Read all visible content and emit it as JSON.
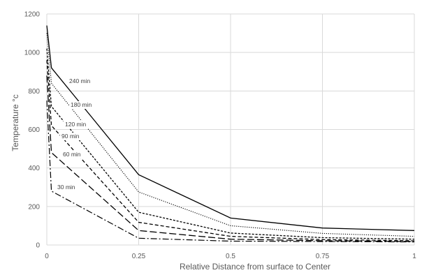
{
  "chart_data": {
    "type": "line",
    "xlabel": "Relative Distance from surface to Center",
    "ylabel": "Temperature °c",
    "xlim": [
      0,
      1
    ],
    "ylim": [
      0,
      1200
    ],
    "x_ticks": [
      {
        "value": 0,
        "label": "0"
      },
      {
        "value": 0.25,
        "label": "0.25"
      },
      {
        "value": 0.5,
        "label": "0.5"
      },
      {
        "value": 0.75,
        "label": "0.75"
      },
      {
        "value": 1,
        "label": "1"
      }
    ],
    "y_ticks": [
      {
        "value": 0,
        "label": "0"
      },
      {
        "value": 200,
        "label": "200"
      },
      {
        "value": 400,
        "label": "400"
      },
      {
        "value": 600,
        "label": "600"
      },
      {
        "value": 800,
        "label": "800"
      },
      {
        "value": 1000,
        "label": "1000"
      },
      {
        "value": 1200,
        "label": "1200"
      }
    ],
    "grid": true,
    "legend": "inline labels",
    "series": [
      {
        "name": "240 min",
        "dash": "solid",
        "x": [
          0,
          0.0125,
          0.25,
          0.5,
          0.75,
          1
        ],
        "y": [
          1140,
          920,
          365,
          140,
          88,
          75
        ]
      },
      {
        "name": "180 min",
        "dash": "dotted",
        "x": [
          0,
          0.0125,
          0.25,
          0.5,
          0.75,
          1
        ],
        "y": [
          1100,
          840,
          275,
          100,
          60,
          45
        ]
      },
      {
        "name": "120 min",
        "dash": "short-dash",
        "x": [
          0,
          0.0125,
          0.25,
          0.5,
          0.75,
          1
        ],
        "y": [
          1020,
          720,
          170,
          62,
          38,
          30
        ]
      },
      {
        "name": "90 min",
        "dash": "dash",
        "x": [
          0,
          0.0125,
          0.25,
          0.5,
          0.75,
          1
        ],
        "y": [
          960,
          620,
          118,
          45,
          28,
          22
        ]
      },
      {
        "name": "60 min",
        "dash": "long-dash",
        "x": [
          0,
          0.0125,
          0.25,
          0.5,
          0.75,
          1
        ],
        "y": [
          880,
          480,
          75,
          30,
          22,
          18
        ]
      },
      {
        "name": "30 min",
        "dash": "dash-dot",
        "x": [
          0,
          0.0125,
          0.25,
          0.5,
          0.75,
          1
        ],
        "y": [
          750,
          280,
          35,
          20,
          18,
          16
        ]
      }
    ]
  }
}
